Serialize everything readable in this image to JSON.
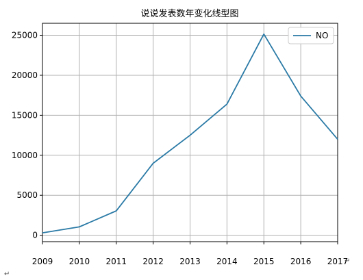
{
  "chart_data": {
    "type": "line",
    "title": "说说发表数年变化线型图",
    "xlabel": "",
    "ylabel": "",
    "x": [
      2009,
      2010,
      2011,
      2012,
      2013,
      2014,
      2015,
      2016,
      2017
    ],
    "series": [
      {
        "name": "NO",
        "values": [
          300,
          1050,
          3050,
          9000,
          12500,
          16400,
          25150,
          17400,
          12000
        ],
        "color": "#2a7aa6"
      }
    ],
    "xlim": [
      2009,
      2017
    ],
    "ylim": [
      -800,
      26500
    ],
    "yticks": [
      0,
      5000,
      10000,
      15000,
      20000,
      25000
    ],
    "xtick_labels": [
      "2009",
      "2010",
      "2011",
      "2012",
      "2013",
      "2014",
      "2015",
      "2016",
      "2017"
    ],
    "grid": true,
    "grid_color": "#b0b0b0",
    "legend_position": "top-right"
  },
  "marks": {
    "paragraph_mark": "↵"
  }
}
